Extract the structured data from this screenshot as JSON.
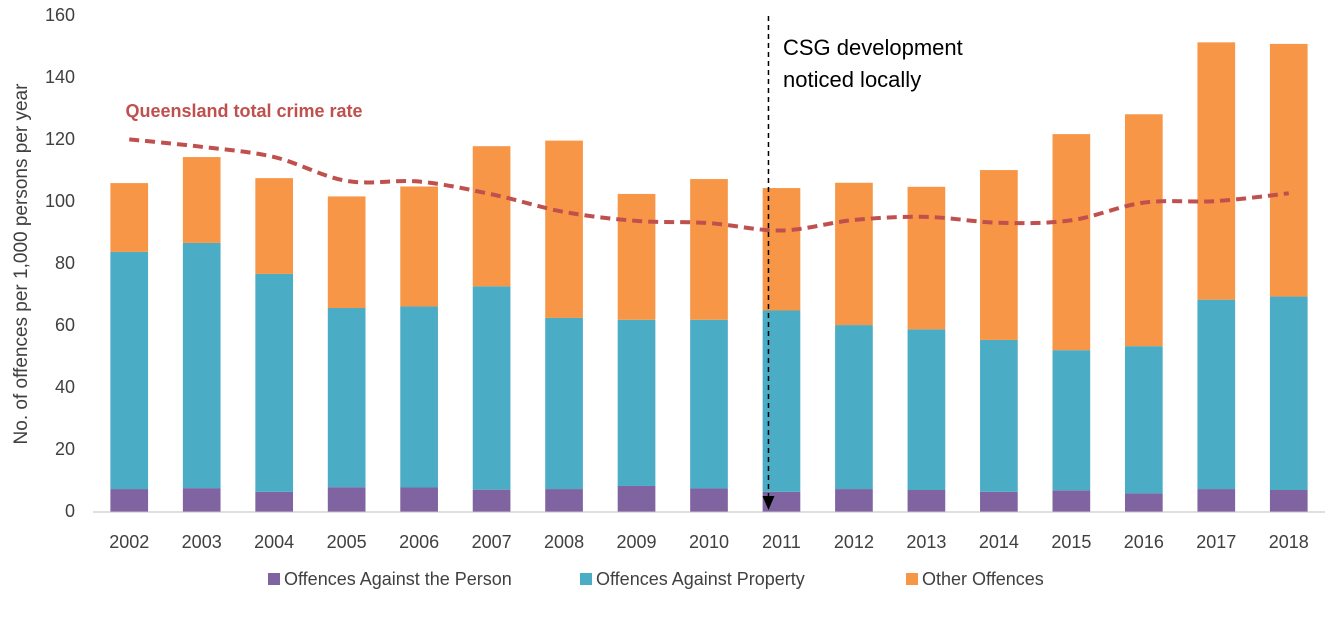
{
  "chart_data": {
    "type": "stacked-bar-line",
    "y_axis_label": "No. of offences per 1,000 persons per year",
    "categories": [
      "2002",
      "2003",
      "2004",
      "2005",
      "2006",
      "2007",
      "2008",
      "2009",
      "2010",
      "2011",
      "2012",
      "2013",
      "2014",
      "2015",
      "2016",
      "2017",
      "2018"
    ],
    "series": [
      {
        "name": "Offences Against the Person",
        "color": "#8064a2",
        "values": [
          7.4,
          7.7,
          6.5,
          8.0,
          7.9,
          7.2,
          7.4,
          8.4,
          7.6,
          6.5,
          7.4,
          7.1,
          6.5,
          7.0,
          6.0,
          7.4,
          7.1
        ]
      },
      {
        "name": "Offences Against Property",
        "color": "#4bacc6",
        "values": [
          76.5,
          79.1,
          70.3,
          57.8,
          58.4,
          65.6,
          55.2,
          53.6,
          54.4,
          58.5,
          52.9,
          51.8,
          49.0,
          45.2,
          47.5,
          61.1,
          62.4
        ]
      },
      {
        "name": "Other Offences",
        "color": "#f79646",
        "values": [
          22.2,
          27.7,
          30.9,
          36.0,
          38.7,
          45.2,
          57.2,
          40.6,
          45.4,
          39.5,
          45.9,
          46.0,
          54.8,
          69.7,
          74.8,
          83.0,
          81.5
        ]
      }
    ],
    "line": {
      "name": "Queensland total crime rate",
      "color": "#c0504d",
      "values": [
        120.2,
        117.8,
        114.5,
        106.8,
        106.6,
        102.5,
        96.8,
        93.9,
        93.2,
        90.8,
        94.2,
        95.2,
        93.3,
        94.1,
        99.8,
        100.3,
        102.8
      ]
    },
    "annotation": {
      "lines": [
        "CSG development",
        "noticed locally"
      ],
      "category": "2011"
    },
    "ylim": [
      0,
      160
    ],
    "yticks": [
      0,
      20,
      40,
      60,
      80,
      100,
      120,
      140,
      160
    ],
    "grid": false
  }
}
